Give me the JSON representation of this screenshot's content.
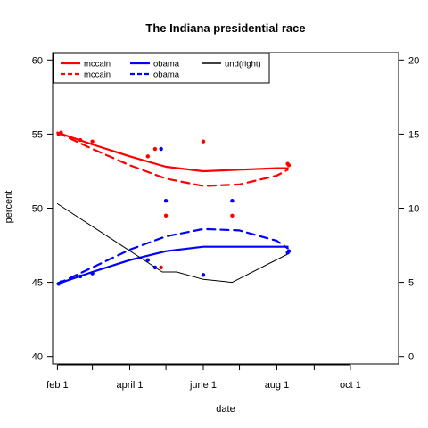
{
  "chart_data": {
    "type": "line",
    "title": "The Indiana presidential race",
    "xlabel": "date",
    "ylabel": "percent",
    "x_ticks": [
      {
        "date": "2008-02-01",
        "label": "feb 1"
      },
      {
        "date": "2008-03-01",
        "label": ""
      },
      {
        "date": "2008-04-01",
        "label": "april 1"
      },
      {
        "date": "2008-05-01",
        "label": ""
      },
      {
        "date": "2008-06-01",
        "label": "june 1"
      },
      {
        "date": "2008-07-01",
        "label": ""
      },
      {
        "date": "2008-08-01",
        "label": "aug 1"
      },
      {
        "date": "2008-09-01",
        "label": ""
      },
      {
        "date": "2008-10-01",
        "label": "oct 1"
      }
    ],
    "xlim": [
      "2008-01-28",
      "2008-11-10"
    ],
    "ylim": [
      39.5,
      60.5
    ],
    "y_ticks": [
      40,
      45,
      50,
      55,
      60
    ],
    "y2lim": [
      -0.5,
      20.5
    ],
    "y2_ticks": [
      0,
      5,
      10,
      15,
      20
    ],
    "grid": false,
    "legend": {
      "position": "top-left",
      "entries": [
        {
          "label": "mccain",
          "color": "#ff0000",
          "style": "solid"
        },
        {
          "label": "mccain",
          "color": "#ff0000",
          "style": "dashed"
        },
        {
          "label": "obama",
          "color": "#0000ff",
          "style": "solid"
        },
        {
          "label": "obama",
          "color": "#0000ff",
          "style": "dashed"
        },
        {
          "label": "und(right)",
          "color": "#000000",
          "style": "solid"
        }
      ]
    },
    "series": [
      {
        "name": "mccain",
        "kind": "line",
        "style": "solid",
        "color": "#ff0000",
        "axis": "left",
        "x": [
          "2008-02-01",
          "2008-03-01",
          "2008-04-01",
          "2008-05-01",
          "2008-06-01",
          "2008-07-01",
          "2008-08-01",
          "2008-08-10"
        ],
        "y": [
          55.1,
          54.3,
          53.5,
          52.8,
          52.5,
          52.6,
          52.7,
          52.7
        ]
      },
      {
        "name": "mccain",
        "kind": "line",
        "style": "dashed",
        "color": "#ff0000",
        "axis": "left",
        "x": [
          "2008-02-01",
          "2008-03-01",
          "2008-04-01",
          "2008-05-01",
          "2008-06-01",
          "2008-07-01",
          "2008-08-01",
          "2008-08-10"
        ],
        "y": [
          55.1,
          54.0,
          52.9,
          52.0,
          51.5,
          51.6,
          52.2,
          52.6
        ]
      },
      {
        "name": "obama",
        "kind": "line",
        "style": "solid",
        "color": "#0000ff",
        "axis": "left",
        "x": [
          "2008-02-01",
          "2008-03-01",
          "2008-04-01",
          "2008-05-01",
          "2008-06-01",
          "2008-07-01",
          "2008-08-01",
          "2008-08-10"
        ],
        "y": [
          44.9,
          45.7,
          46.5,
          47.1,
          47.4,
          47.4,
          47.4,
          47.4
        ]
      },
      {
        "name": "obama",
        "kind": "line",
        "style": "dashed",
        "color": "#0000ff",
        "axis": "left",
        "x": [
          "2008-02-01",
          "2008-03-01",
          "2008-04-01",
          "2008-05-01",
          "2008-06-01",
          "2008-07-01",
          "2008-08-01",
          "2008-08-10"
        ],
        "y": [
          44.9,
          46.0,
          47.2,
          48.1,
          48.6,
          48.5,
          47.8,
          47.3
        ]
      },
      {
        "name": "und(right)",
        "kind": "line",
        "style": "solid",
        "color": "#000000",
        "axis": "right",
        "x": [
          "2008-02-01",
          "2008-04-28",
          "2008-05-10",
          "2008-06-01",
          "2008-06-25",
          "2008-08-10"
        ],
        "y": [
          10.3,
          5.7,
          5.7,
          5.2,
          5.0,
          6.9
        ]
      },
      {
        "name": "mccain",
        "kind": "points",
        "color": "#ff0000",
        "axis": "left",
        "x": [
          "2008-02-02",
          "2008-02-04",
          "2008-02-20",
          "2008-03-01",
          "2008-04-16",
          "2008-04-22",
          "2008-04-27",
          "2008-05-01",
          "2008-06-01",
          "2008-06-25",
          "2008-08-10",
          "2008-08-11"
        ],
        "y": [
          55.0,
          55.1,
          54.6,
          54.5,
          53.5,
          54.0,
          46.0,
          49.5,
          54.5,
          49.5,
          53.0,
          52.9
        ]
      },
      {
        "name": "obama",
        "kind": "points",
        "color": "#0000ff",
        "axis": "left",
        "x": [
          "2008-02-02",
          "2008-02-04",
          "2008-02-20",
          "2008-03-01",
          "2008-04-16",
          "2008-04-22",
          "2008-04-27",
          "2008-05-01",
          "2008-06-01",
          "2008-06-25",
          "2008-08-10",
          "2008-08-11"
        ],
        "y": [
          44.9,
          45.0,
          45.4,
          45.6,
          46.5,
          46.0,
          54.0,
          50.5,
          45.5,
          50.5,
          47.0,
          47.1
        ]
      }
    ]
  }
}
